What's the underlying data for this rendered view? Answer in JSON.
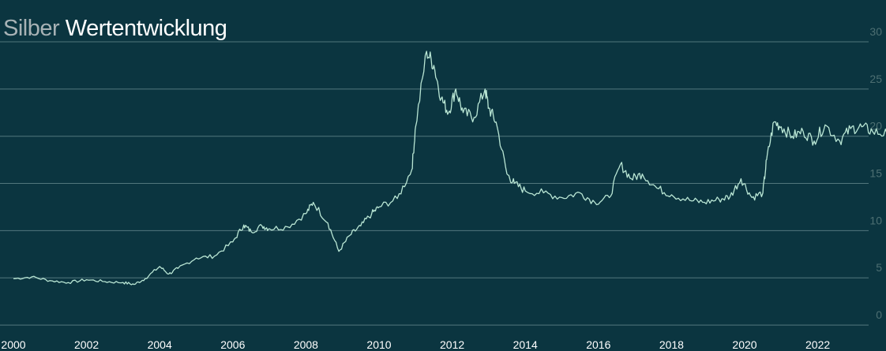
{
  "title": {
    "prefix": "Silber",
    "main": "Wertentwicklung"
  },
  "colors": {
    "background": "#0b3540",
    "line": "#b9e6d4",
    "grid": "#6a8d92",
    "ytick": "#4d6f72",
    "xtick": "#ffffff"
  },
  "chart_data": {
    "type": "line",
    "title": "Silber Wertentwicklung",
    "xlabel": "",
    "ylabel": "",
    "ylim": [
      -2.5,
      30
    ],
    "xlim": [
      2000.0,
      2023.9
    ],
    "grid": true,
    "y_axis_side": "right",
    "yticks": [
      0,
      5,
      10,
      15,
      20,
      25,
      30
    ],
    "xticks": [
      2000,
      2002,
      2004,
      2006,
      2008,
      2010,
      2012,
      2014,
      2016,
      2018,
      2020,
      2022
    ],
    "series": [
      {
        "name": "",
        "x": [
          2000.0,
          2000.5,
          2001.0,
          2001.5,
          2002.0,
          2002.5,
          2003.0,
          2003.3,
          2003.6,
          2004.0,
          2004.25,
          2004.5,
          2005.0,
          2005.5,
          2006.0,
          2006.3,
          2006.5,
          2006.8,
          2007.0,
          2007.5,
          2008.0,
          2008.2,
          2008.6,
          2008.9,
          2009.2,
          2009.5,
          2009.8,
          2010.0,
          2010.5,
          2010.9,
          2011.0,
          2011.3,
          2011.5,
          2011.7,
          2011.9,
          2012.1,
          2012.3,
          2012.6,
          2012.9,
          2013.0,
          2013.2,
          2013.5,
          2013.7,
          2014.0,
          2014.5,
          2015.0,
          2015.5,
          2015.9,
          2016.3,
          2016.6,
          2016.9,
          2017.2,
          2017.6,
          2018.0,
          2018.5,
          2018.9,
          2019.3,
          2019.6,
          2019.9,
          2020.2,
          2020.5,
          2020.6,
          2020.8,
          2021.0,
          2021.3,
          2021.6,
          2021.9,
          2022.2,
          2022.6,
          2022.9,
          2023.2,
          2023.5,
          2023.9
        ],
        "values": [
          4.9,
          5.1,
          4.7,
          4.5,
          4.8,
          4.6,
          4.5,
          4.3,
          4.9,
          6.2,
          5.4,
          6.0,
          7.1,
          7.3,
          8.8,
          10.6,
          9.9,
          10.5,
          10.2,
          10.4,
          11.8,
          13.0,
          10.8,
          7.8,
          9.5,
          10.5,
          11.8,
          12.5,
          13.4,
          16.5,
          21.0,
          29.0,
          27.5,
          24.0,
          22.5,
          25.0,
          22.5,
          22.0,
          25.0,
          23.0,
          21.5,
          16.0,
          15.0,
          14.2,
          14.0,
          13.5,
          14.0,
          13.0,
          13.5,
          17.0,
          15.5,
          16.0,
          14.5,
          13.8,
          13.2,
          13.0,
          13.3,
          13.6,
          15.5,
          13.5,
          14.0,
          17.5,
          21.5,
          21.0,
          20.0,
          20.5,
          19.5,
          21.2,
          19.5,
          20.8,
          21.0,
          20.5,
          20.2
        ]
      }
    ]
  }
}
